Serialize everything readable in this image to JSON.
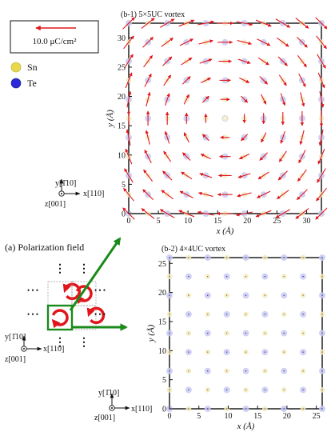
{
  "legend": {
    "scale_label": "10.0 μC/cm²",
    "arrow_color": "#e0161b",
    "items": [
      {
        "label": "Sn",
        "color": "#e8d84a"
      },
      {
        "label": "Te",
        "color": "#2a2ad6"
      }
    ]
  },
  "overview": {
    "label": "(a) Polarization field",
    "dots": "• • •",
    "dots_v": "⋮",
    "cell_arrow_color": "#e0161b",
    "highlight_color": "#1a8a1a"
  },
  "axes_a": {
    "y": "y[1̄10]",
    "x": "x[110]",
    "z": "z[001]"
  },
  "axes_top": {
    "y": "y[1̄10]",
    "x": "x[110]",
    "z": "z[001]"
  },
  "axes_bottom": {
    "y": "y[1̄10]",
    "x": "x[110]",
    "z": "z[001]"
  },
  "chart_data": [
    {
      "type": "scatter",
      "title": "(b-1) 5×5UC vortex",
      "xlabel": "x (Å)",
      "ylabel": "y (Å)",
      "xlim": [
        0,
        32.5
      ],
      "ylim": [
        0,
        32.5
      ],
      "xticks": [
        0,
        5,
        10,
        15,
        20,
        25,
        30
      ],
      "yticks": [
        0,
        5,
        10,
        15,
        20,
        25,
        30
      ],
      "grid_step": 3.25,
      "grid_n": 11,
      "vortex_center": [
        16.25,
        16.25
      ],
      "arrow_max": 2.8,
      "arrow_color": "#e0161b"
    },
    {
      "type": "scatter",
      "title": "(b-2) 4×4UC vortex",
      "xlabel": "x (Å)",
      "ylabel": "y (Å)",
      "xlim": [
        0,
        26
      ],
      "ylim": [
        0,
        26
      ],
      "xticks": [
        0,
        5,
        10,
        15,
        20,
        25
      ],
      "yticks": [
        0,
        5,
        10,
        15,
        20,
        25
      ],
      "grid_step": 3.25,
      "grid_n": 9,
      "arrow_color": "#e0161b"
    }
  ]
}
